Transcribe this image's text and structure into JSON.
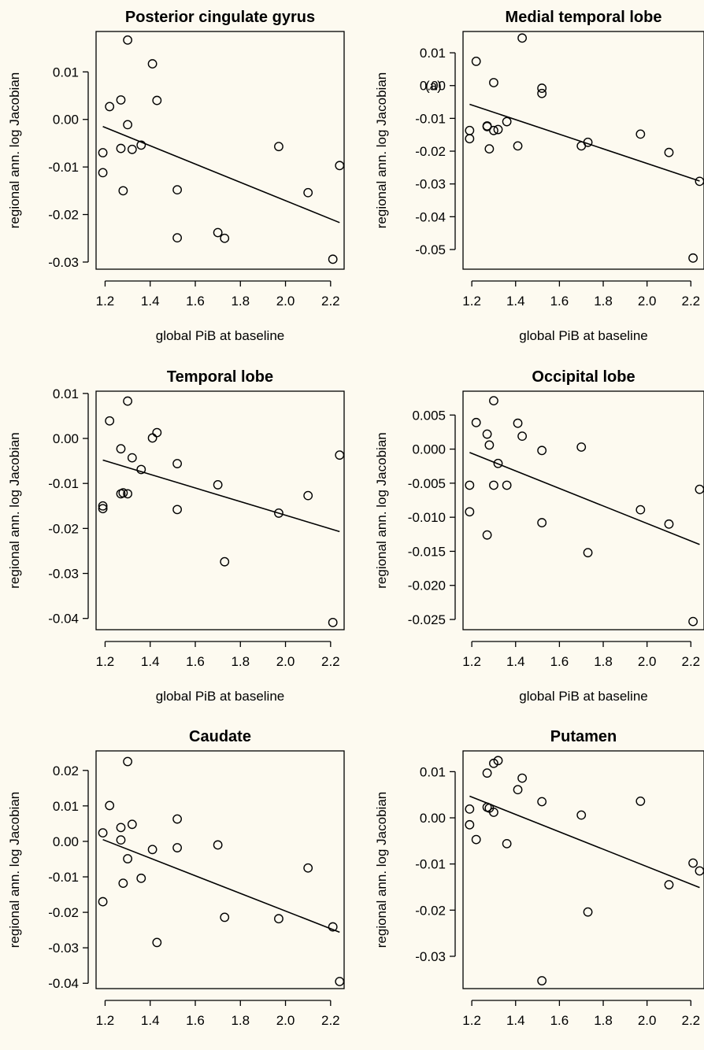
{
  "chart_data": [
    {
      "type": "scatter",
      "title": "Posterior cingulate gyrus",
      "xlabel": "global PiB at baseline",
      "ylabel": "regional ann. log Jacobian",
      "xlim": [
        1.16,
        2.26
      ],
      "ylim": [
        -0.0315,
        0.0185
      ],
      "xticks": [
        1.2,
        1.4,
        1.6,
        1.8,
        2.0,
        2.2
      ],
      "xtick_labels": [
        "1.2",
        "1.4",
        "1.6",
        "1.8",
        "2.0",
        "2.2"
      ],
      "yticks": [
        0.01,
        0.0,
        -0.01,
        -0.02,
        -0.03
      ],
      "ytick_labels": [
        "0.01",
        "0.00",
        "-0.01",
        "-0.02",
        "-0.03"
      ],
      "annotation": "",
      "points": [
        {
          "x": 1.19,
          "y": -0.007
        },
        {
          "x": 1.19,
          "y": -0.0112
        },
        {
          "x": 1.22,
          "y": 0.0027
        },
        {
          "x": 1.27,
          "y": 0.0041
        },
        {
          "x": 1.27,
          "y": -0.0061
        },
        {
          "x": 1.28,
          "y": -0.015
        },
        {
          "x": 1.3,
          "y": 0.0167
        },
        {
          "x": 1.3,
          "y": -0.0011
        },
        {
          "x": 1.32,
          "y": -0.0063
        },
        {
          "x": 1.36,
          "y": -0.0054
        },
        {
          "x": 1.41,
          "y": 0.0117
        },
        {
          "x": 1.43,
          "y": 0.004
        },
        {
          "x": 1.52,
          "y": -0.0148
        },
        {
          "x": 1.52,
          "y": -0.0249
        },
        {
          "x": 1.7,
          "y": -0.0238
        },
        {
          "x": 1.73,
          "y": -0.025
        },
        {
          "x": 1.97,
          "y": -0.0057
        },
        {
          "x": 2.1,
          "y": -0.0154
        },
        {
          "x": 2.21,
          "y": -0.0294
        },
        {
          "x": 2.24,
          "y": -0.0097
        }
      ],
      "fit": [
        {
          "x": 1.19,
          "y": -0.0015
        },
        {
          "x": 2.24,
          "y": -0.0217
        }
      ]
    },
    {
      "type": "scatter",
      "title": "Medial temporal lobe",
      "xlabel": "global PiB at baseline",
      "ylabel": "regional ann. log Jacobian",
      "xlim": [
        1.16,
        2.26
      ],
      "ylim": [
        -0.056,
        0.0165
      ],
      "xticks": [
        1.2,
        1.4,
        1.6,
        1.8,
        2.0,
        2.2
      ],
      "xtick_labels": [
        "1.2",
        "1.4",
        "1.6",
        "1.8",
        "2.0",
        "2.2"
      ],
      "yticks": [
        0.01,
        0.0,
        -0.01,
        -0.02,
        -0.03,
        -0.04,
        -0.05
      ],
      "ytick_labels": [
        "0.01",
        "0.00",
        "-0.01",
        "-0.02",
        "-0.03",
        "-0.04",
        "-0.05"
      ],
      "annotation": "(a)",
      "points": [
        {
          "x": 1.19,
          "y": -0.0137
        },
        {
          "x": 1.19,
          "y": -0.0162
        },
        {
          "x": 1.22,
          "y": 0.0074
        },
        {
          "x": 1.27,
          "y": -0.0123
        },
        {
          "x": 1.27,
          "y": -0.0125
        },
        {
          "x": 1.28,
          "y": -0.0193
        },
        {
          "x": 1.3,
          "y": 0.0009
        },
        {
          "x": 1.3,
          "y": -0.0137
        },
        {
          "x": 1.32,
          "y": -0.0134
        },
        {
          "x": 1.36,
          "y": -0.011
        },
        {
          "x": 1.41,
          "y": -0.0184
        },
        {
          "x": 1.43,
          "y": 0.0145
        },
        {
          "x": 1.52,
          "y": -0.0008
        },
        {
          "x": 1.52,
          "y": -0.0024
        },
        {
          "x": 1.7,
          "y": -0.0184
        },
        {
          "x": 1.73,
          "y": -0.0173
        },
        {
          "x": 1.97,
          "y": -0.0148
        },
        {
          "x": 2.1,
          "y": -0.0204
        },
        {
          "x": 2.21,
          "y": -0.0526
        },
        {
          "x": 2.24,
          "y": -0.0292
        }
      ],
      "fit": [
        {
          "x": 1.19,
          "y": -0.0057
        },
        {
          "x": 2.24,
          "y": -0.0291
        }
      ]
    },
    {
      "type": "scatter",
      "title": "Temporal lobe",
      "xlabel": "global PiB at baseline",
      "ylabel": "regional ann. log Jacobian",
      "xlim": [
        1.16,
        2.26
      ],
      "ylim": [
        -0.0425,
        0.0105
      ],
      "xticks": [
        1.2,
        1.4,
        1.6,
        1.8,
        2.0,
        2.2
      ],
      "xtick_labels": [
        "1.2",
        "1.4",
        "1.6",
        "1.8",
        "2.0",
        "2.2"
      ],
      "yticks": [
        0.01,
        0.0,
        -0.01,
        -0.02,
        -0.03,
        -0.04
      ],
      "ytick_labels": [
        "0.01",
        "0.00",
        "-0.01",
        "-0.02",
        "-0.03",
        "-0.04"
      ],
      "annotation": "",
      "points": [
        {
          "x": 1.19,
          "y": -0.015
        },
        {
          "x": 1.19,
          "y": -0.0156
        },
        {
          "x": 1.22,
          "y": 0.0039
        },
        {
          "x": 1.27,
          "y": -0.0023
        },
        {
          "x": 1.27,
          "y": -0.0123
        },
        {
          "x": 1.28,
          "y": -0.0121
        },
        {
          "x": 1.3,
          "y": 0.0083
        },
        {
          "x": 1.3,
          "y": -0.0123
        },
        {
          "x": 1.32,
          "y": -0.0043
        },
        {
          "x": 1.36,
          "y": -0.0069
        },
        {
          "x": 1.41,
          "y": 0.0001
        },
        {
          "x": 1.43,
          "y": 0.0013
        },
        {
          "x": 1.52,
          "y": -0.0056
        },
        {
          "x": 1.52,
          "y": -0.0158
        },
        {
          "x": 1.7,
          "y": -0.0103
        },
        {
          "x": 1.73,
          "y": -0.0274
        },
        {
          "x": 1.97,
          "y": -0.0166
        },
        {
          "x": 2.1,
          "y": -0.0127
        },
        {
          "x": 2.21,
          "y": -0.0409
        },
        {
          "x": 2.24,
          "y": -0.0037
        }
      ],
      "fit": [
        {
          "x": 1.19,
          "y": -0.0048
        },
        {
          "x": 2.24,
          "y": -0.0207
        }
      ]
    },
    {
      "type": "scatter",
      "title": "Occipital lobe",
      "xlabel": "global PiB at baseline",
      "ylabel": "regional ann. log Jacobian",
      "xlim": [
        1.16,
        2.26
      ],
      "ylim": [
        -0.0265,
        0.0085
      ],
      "xticks": [
        1.2,
        1.4,
        1.6,
        1.8,
        2.0,
        2.2
      ],
      "xtick_labels": [
        "1.2",
        "1.4",
        "1.6",
        "1.8",
        "2.0",
        "2.2"
      ],
      "yticks": [
        0.005,
        0.0,
        -0.005,
        -0.01,
        -0.015,
        -0.02,
        -0.025
      ],
      "ytick_labels": [
        "0.005",
        "0.000",
        "-0.005",
        "-0.010",
        "-0.015",
        "-0.020",
        "-0.025"
      ],
      "annotation": "",
      "points": [
        {
          "x": 1.19,
          "y": -0.0053
        },
        {
          "x": 1.19,
          "y": -0.0092
        },
        {
          "x": 1.22,
          "y": 0.0039
        },
        {
          "x": 1.27,
          "y": 0.0022
        },
        {
          "x": 1.27,
          "y": -0.0126
        },
        {
          "x": 1.28,
          "y": 0.0006
        },
        {
          "x": 1.3,
          "y": 0.0071
        },
        {
          "x": 1.3,
          "y": -0.0053
        },
        {
          "x": 1.32,
          "y": -0.0021
        },
        {
          "x": 1.36,
          "y": -0.0053
        },
        {
          "x": 1.41,
          "y": 0.0038
        },
        {
          "x": 1.43,
          "y": 0.0019
        },
        {
          "x": 1.52,
          "y": -0.0002
        },
        {
          "x": 1.52,
          "y": -0.0108
        },
        {
          "x": 1.7,
          "y": 0.0003
        },
        {
          "x": 1.73,
          "y": -0.0152
        },
        {
          "x": 1.97,
          "y": -0.0089
        },
        {
          "x": 2.1,
          "y": -0.011
        },
        {
          "x": 2.21,
          "y": -0.0253
        },
        {
          "x": 2.24,
          "y": -0.0059
        }
      ],
      "fit": [
        {
          "x": 1.19,
          "y": -0.0005
        },
        {
          "x": 2.24,
          "y": -0.014
        }
      ]
    },
    {
      "type": "scatter",
      "title": "Caudate",
      "xlabel": "global PiB at baseline",
      "ylabel": "regional ann. log Jacobian",
      "xlim": [
        1.16,
        2.26
      ],
      "ylim": [
        -0.0415,
        0.0255
      ],
      "xticks": [
        1.2,
        1.4,
        1.6,
        1.8,
        2.0,
        2.2
      ],
      "xtick_labels": [
        "1.2",
        "1.4",
        "1.6",
        "1.8",
        "2.0",
        "2.2"
      ],
      "yticks": [
        0.02,
        0.01,
        0.0,
        -0.01,
        -0.02,
        -0.03,
        -0.04
      ],
      "ytick_labels": [
        "0.02",
        "0.01",
        "0.00",
        "-0.01",
        "-0.02",
        "-0.03",
        "-0.04"
      ],
      "annotation": "",
      "points": [
        {
          "x": 1.19,
          "y": 0.0024
        },
        {
          "x": 1.19,
          "y": -0.017
        },
        {
          "x": 1.22,
          "y": 0.0101
        },
        {
          "x": 1.27,
          "y": 0.0039
        },
        {
          "x": 1.27,
          "y": 0.0004
        },
        {
          "x": 1.28,
          "y": -0.0118
        },
        {
          "x": 1.3,
          "y": 0.0225
        },
        {
          "x": 1.3,
          "y": -0.0049
        },
        {
          "x": 1.32,
          "y": 0.0048
        },
        {
          "x": 1.36,
          "y": -0.0104
        },
        {
          "x": 1.41,
          "y": -0.0023
        },
        {
          "x": 1.43,
          "y": -0.0285
        },
        {
          "x": 1.52,
          "y": 0.0063
        },
        {
          "x": 1.52,
          "y": -0.0018
        },
        {
          "x": 1.7,
          "y": -0.001
        },
        {
          "x": 1.73,
          "y": -0.0214
        },
        {
          "x": 1.97,
          "y": -0.0218
        },
        {
          "x": 2.1,
          "y": -0.0075
        },
        {
          "x": 2.21,
          "y": -0.0241
        },
        {
          "x": 2.24,
          "y": -0.0395
        }
      ],
      "fit": [
        {
          "x": 1.19,
          "y": 0.0005
        },
        {
          "x": 2.24,
          "y": -0.0256
        }
      ]
    },
    {
      "type": "scatter",
      "title": "Putamen",
      "xlabel": "global PiB at baseline",
      "ylabel": "regional ann. log Jacobian",
      "xlim": [
        1.16,
        2.26
      ],
      "ylim": [
        -0.037,
        0.0145
      ],
      "xticks": [
        1.2,
        1.4,
        1.6,
        1.8,
        2.0,
        2.2
      ],
      "xtick_labels": [
        "1.2",
        "1.4",
        "1.6",
        "1.8",
        "2.0",
        "2.2"
      ],
      "yticks": [
        0.01,
        0.0,
        -0.01,
        -0.02,
        -0.03
      ],
      "ytick_labels": [
        "0.01",
        "0.00",
        "-0.01",
        "-0.02",
        "-0.03"
      ],
      "annotation": "",
      "points": [
        {
          "x": 1.19,
          "y": 0.0019
        },
        {
          "x": 1.19,
          "y": -0.0015
        },
        {
          "x": 1.22,
          "y": -0.0047
        },
        {
          "x": 1.27,
          "y": 0.0097
        },
        {
          "x": 1.27,
          "y": 0.0023
        },
        {
          "x": 1.28,
          "y": 0.0021
        },
        {
          "x": 1.3,
          "y": 0.0118
        },
        {
          "x": 1.3,
          "y": 0.0012
        },
        {
          "x": 1.32,
          "y": 0.0124
        },
        {
          "x": 1.36,
          "y": -0.0056
        },
        {
          "x": 1.41,
          "y": 0.0061
        },
        {
          "x": 1.43,
          "y": 0.0086
        },
        {
          "x": 1.52,
          "y": 0.0035
        },
        {
          "x": 1.52,
          "y": -0.0353
        },
        {
          "x": 1.7,
          "y": 0.0006
        },
        {
          "x": 1.73,
          "y": -0.0204
        },
        {
          "x": 1.97,
          "y": 0.0036
        },
        {
          "x": 2.1,
          "y": -0.0145
        },
        {
          "x": 2.21,
          "y": -0.0098
        },
        {
          "x": 2.24,
          "y": -0.0115
        }
      ],
      "fit": [
        {
          "x": 1.19,
          "y": 0.0047
        },
        {
          "x": 2.24,
          "y": -0.0151
        }
      ]
    }
  ]
}
